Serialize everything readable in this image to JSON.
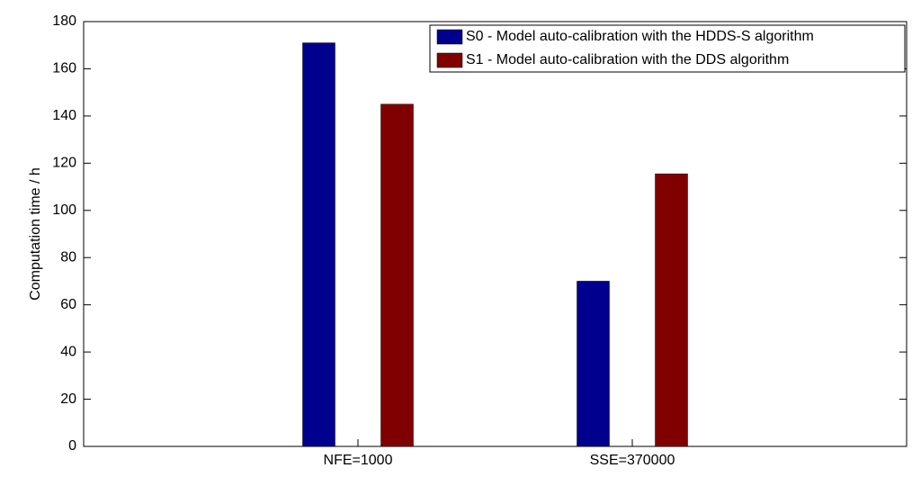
{
  "chart_data": {
    "type": "bar",
    "y_label": "Computation time / h",
    "categories": [
      "NFE=1000",
      "SSE=370000"
    ],
    "series": [
      {
        "name": "S0 - Model auto-calibration with the HDDS-S algorithm",
        "color": "#00008f",
        "values": [
          171,
          70
        ]
      },
      {
        "name": "S1 - Model auto-calibration with the DDS algorithm",
        "color": "#800000",
        "values": [
          145,
          115.5
        ]
      }
    ],
    "ylim": [
      0,
      180
    ],
    "yticks": [
      0,
      20,
      40,
      60,
      80,
      100,
      120,
      140,
      160,
      180
    ],
    "legend": "northeast",
    "grid": false
  }
}
